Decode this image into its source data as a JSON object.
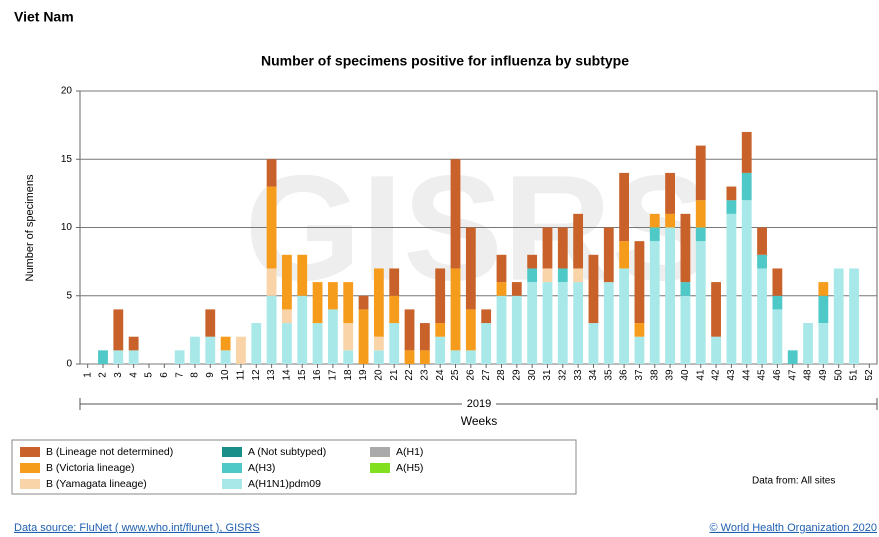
{
  "chart_data": {
    "type": "stacked_bar",
    "header": "Viet Nam",
    "title": "Number of specimens positive for influenza by subtype",
    "watermark": "GISRS",
    "ylabel": "Number of specimens",
    "xlabel": "Weeks",
    "year": "2019",
    "data_from": "Data from: All sites",
    "source": "Data source: FluNet ( www.who.int/flunet ), GISRS",
    "copyright": "© World Health Organization 2020",
    "categories": [
      "1",
      "2",
      "3",
      "4",
      "5",
      "6",
      "7",
      "8",
      "9",
      "10",
      "11",
      "12",
      "13",
      "14",
      "15",
      "16",
      "17",
      "18",
      "19",
      "20",
      "21",
      "22",
      "23",
      "24",
      "25",
      "26",
      "27",
      "28",
      "29",
      "30",
      "31",
      "32",
      "33",
      "34",
      "35",
      "36",
      "37",
      "38",
      "39",
      "40",
      "41",
      "42",
      "43",
      "44",
      "45",
      "46",
      "47",
      "48",
      "49",
      "50",
      "51",
      "52"
    ],
    "ylim": [
      0,
      20
    ],
    "yticks": [
      0,
      5,
      10,
      15,
      20
    ],
    "grid": true,
    "series": [
      {
        "name": "B (Lineage not determined)",
        "color": "#c8622a",
        "values": [
          0,
          0,
          3,
          1,
          0,
          0,
          0,
          0,
          2,
          0,
          0,
          0,
          2,
          0,
          0,
          0,
          0,
          0,
          1,
          0,
          2,
          3,
          2,
          4,
          8,
          6,
          1,
          2,
          1,
          1,
          3,
          3,
          4,
          5,
          4,
          5,
          6,
          0,
          3,
          5,
          4,
          4,
          1,
          3,
          2,
          2,
          0,
          0,
          0,
          0,
          0,
          0
        ]
      },
      {
        "name": "B (Victoria lineage)",
        "color": "#f59c1c",
        "values": [
          0,
          0,
          0,
          0,
          0,
          0,
          0,
          0,
          0,
          1,
          0,
          0,
          6,
          4,
          3,
          3,
          2,
          3,
          4,
          5,
          2,
          1,
          1,
          1,
          6,
          3,
          0,
          1,
          0,
          0,
          0,
          0,
          0,
          0,
          0,
          2,
          1,
          1,
          1,
          0,
          2,
          0,
          0,
          0,
          0,
          0,
          0,
          0,
          1,
          0,
          0,
          0
        ]
      },
      {
        "name": "B (Yamagata lineage)",
        "color": "#f9d4a8",
        "values": [
          0,
          0,
          0,
          0,
          0,
          0,
          0,
          0,
          0,
          0,
          2,
          0,
          2,
          1,
          0,
          0,
          0,
          2,
          0,
          1,
          0,
          0,
          0,
          0,
          0,
          0,
          0,
          0,
          0,
          0,
          1,
          0,
          1,
          0,
          0,
          0,
          0,
          0,
          0,
          0,
          0,
          0,
          0,
          0,
          0,
          0,
          0,
          0,
          0,
          0,
          0,
          0
        ]
      },
      {
        "name": "A (Not subtyped)",
        "color": "#1a8f8a",
        "values": [
          0,
          0,
          0,
          0,
          0,
          0,
          0,
          0,
          0,
          0,
          0,
          0,
          0,
          0,
          0,
          0,
          0,
          0,
          0,
          0,
          0,
          0,
          0,
          0,
          0,
          0,
          0,
          0,
          0,
          0,
          0,
          0,
          0,
          0,
          0,
          0,
          0,
          0,
          0,
          0,
          0,
          0,
          0,
          0,
          0,
          0,
          0,
          0,
          0,
          0,
          0,
          0
        ]
      },
      {
        "name": "A(H3)",
        "color": "#4fc8c8",
        "values": [
          0,
          1,
          0,
          0,
          0,
          0,
          0,
          0,
          0,
          0,
          0,
          0,
          0,
          0,
          0,
          0,
          0,
          0,
          0,
          0,
          0,
          0,
          0,
          0,
          0,
          0,
          0,
          0,
          0,
          1,
          0,
          1,
          0,
          0,
          0,
          0,
          0,
          1,
          0,
          1,
          1,
          0,
          1,
          2,
          1,
          1,
          1,
          0,
          2,
          0,
          0,
          0
        ]
      },
      {
        "name": "A(H1N1)pdm09",
        "color": "#a8e8e8",
        "values": [
          0,
          0,
          1,
          1,
          0,
          0,
          1,
          2,
          2,
          1,
          0,
          3,
          5,
          3,
          5,
          3,
          4,
          1,
          0,
          1,
          3,
          0,
          0,
          2,
          1,
          1,
          3,
          5,
          5,
          6,
          6,
          6,
          6,
          3,
          6,
          7,
          2,
          9,
          10,
          5,
          9,
          2,
          11,
          12,
          7,
          4,
          0,
          3,
          3,
          7,
          7,
          0
        ]
      },
      {
        "name": "A(H1)",
        "color": "#aaaaaa",
        "values": [
          0,
          0,
          0,
          0,
          0,
          0,
          0,
          0,
          0,
          0,
          0,
          0,
          0,
          0,
          0,
          0,
          0,
          0,
          0,
          0,
          0,
          0,
          0,
          0,
          0,
          0,
          0,
          0,
          0,
          0,
          0,
          0,
          0,
          0,
          0,
          0,
          0,
          0,
          0,
          0,
          0,
          0,
          0,
          0,
          0,
          0,
          0,
          0,
          0,
          0,
          0,
          0
        ]
      },
      {
        "name": "A(H5)",
        "color": "#80e020",
        "values": [
          0,
          0,
          0,
          0,
          0,
          0,
          0,
          0,
          0,
          0,
          0,
          0,
          0,
          0,
          0,
          0,
          0,
          0,
          0,
          0,
          0,
          0,
          0,
          0,
          0,
          0,
          0,
          0,
          0,
          0,
          0,
          0,
          0,
          0,
          0,
          0,
          0,
          0,
          0,
          0,
          0,
          0,
          0,
          0,
          0,
          0,
          0,
          0,
          0,
          0,
          0,
          0
        ]
      }
    ]
  }
}
